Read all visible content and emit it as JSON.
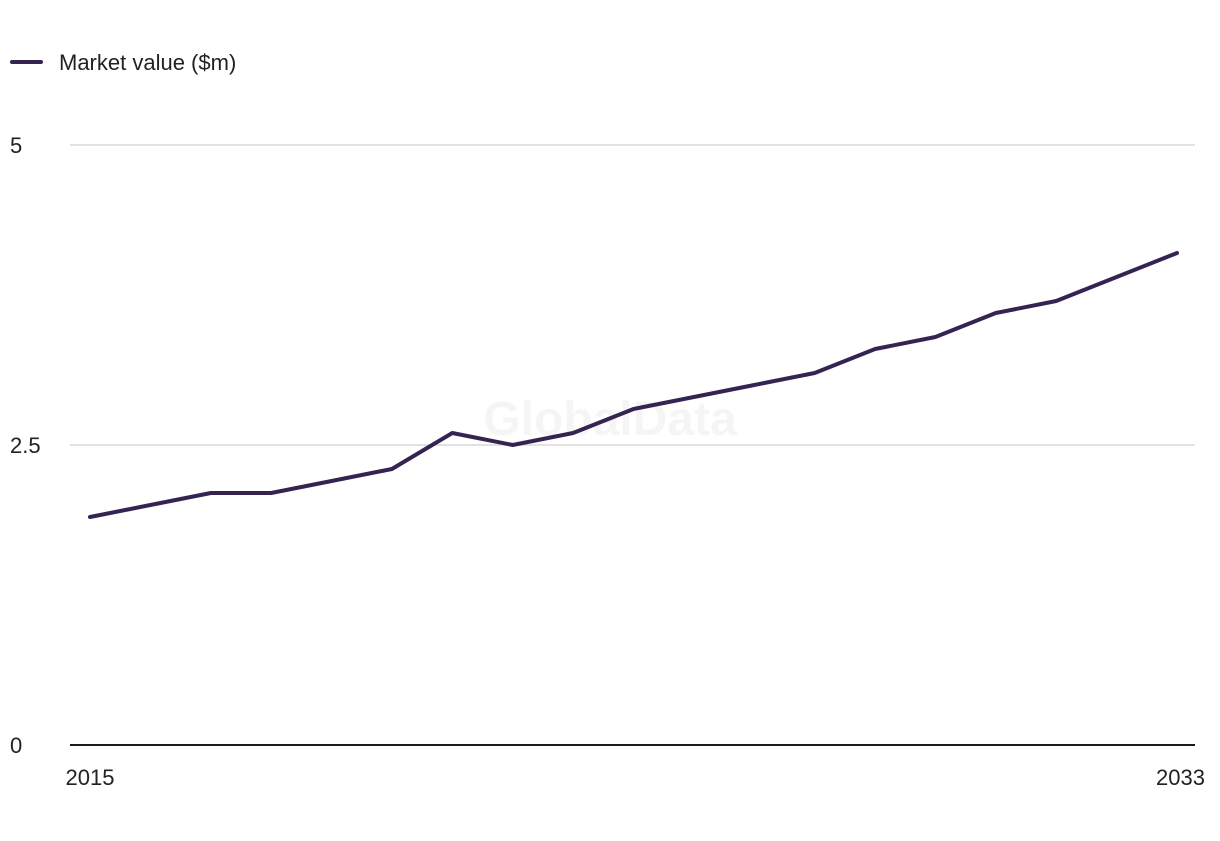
{
  "legend": {
    "label": "Market value ($m)"
  },
  "watermark": "GlobalData",
  "colors": {
    "series": "#352452",
    "grid": "#d9d9dc",
    "axis": "#1a1a1a",
    "text": "#222222"
  },
  "chart_data": {
    "type": "line",
    "title": "",
    "xlabel": "",
    "ylabel": "",
    "x": [
      2015,
      2016,
      2017,
      2018,
      2019,
      2020,
      2021,
      2022,
      2023,
      2024,
      2025,
      2026,
      2027,
      2028,
      2029,
      2030,
      2031,
      2032,
      2033
    ],
    "x_tick_labels": [
      "2015",
      "2033"
    ],
    "y_ticks": [
      0,
      2.5,
      5
    ],
    "y_tick_labels": [
      "0",
      "2.5",
      "5"
    ],
    "ylim": [
      0,
      5
    ],
    "grid": true,
    "legend_position": "top-left",
    "series": [
      {
        "name": "Market value ($m)",
        "values": [
          1.9,
          2.0,
          2.1,
          2.1,
          2.2,
          2.3,
          2.6,
          2.5,
          2.6,
          2.8,
          2.9,
          3.0,
          3.1,
          3.3,
          3.4,
          3.6,
          3.7,
          3.9,
          4.1
        ]
      }
    ]
  }
}
